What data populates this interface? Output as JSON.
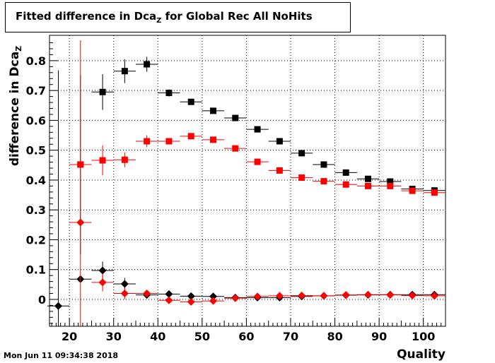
{
  "chart_data": {
    "type": "scatter",
    "title_main": "Fitted difference in Dca",
    "title_sub": "Z",
    "title_tail": " for Global Rec All NoHits",
    "xlabel": "Quality",
    "ylabel_main": "difference in Dca",
    "ylabel_sub": "Z",
    "xlim": [
      15.5,
      105
    ],
    "ylim": [
      -0.09,
      0.885
    ],
    "xticks": [
      20,
      30,
      40,
      50,
      60,
      70,
      80,
      90,
      100
    ],
    "yticks": [
      0,
      0.1,
      0.2,
      0.3,
      0.4,
      0.5,
      0.6,
      0.7,
      0.8
    ],
    "ytick_labels": [
      "0",
      "0.1",
      "0.2",
      "0.3",
      "0.4",
      "0.5",
      "0.6",
      "0.7",
      "0.8"
    ],
    "grid": true,
    "series": [
      {
        "marker": "square",
        "color": "#000000",
        "points": [
          [
            22.5,
            0.452,
            0.3
          ],
          [
            27.5,
            0.695,
            0.06
          ],
          [
            32.5,
            0.765,
            0.04
          ],
          [
            37.5,
            0.788,
            0.025
          ],
          [
            42.5,
            0.692,
            0.012
          ],
          [
            47.5,
            0.662,
            0.008
          ],
          [
            52.5,
            0.632,
            0.006
          ],
          [
            57.5,
            0.608,
            0.005
          ],
          [
            62.5,
            0.57,
            0.005
          ],
          [
            67.5,
            0.53,
            0.005
          ],
          [
            72.5,
            0.49,
            0.004
          ],
          [
            77.5,
            0.452,
            0.004
          ],
          [
            82.5,
            0.425,
            0.004
          ],
          [
            87.5,
            0.404,
            0.004
          ],
          [
            92.5,
            0.395,
            0.004
          ],
          [
            97.5,
            0.37,
            0.004
          ],
          [
            102.5,
            0.365,
            0.004
          ]
        ]
      },
      {
        "marker": "square",
        "color": "#ff0000",
        "points": [
          [
            22.5,
            0.452,
            0.0
          ],
          [
            27.5,
            0.466,
            0.05
          ],
          [
            32.5,
            0.468,
            0.025
          ],
          [
            37.5,
            0.53,
            0.02
          ],
          [
            42.5,
            0.53,
            0.01
          ],
          [
            47.5,
            0.547,
            0.008
          ],
          [
            52.5,
            0.535,
            0.006
          ],
          [
            57.5,
            0.506,
            0.005
          ],
          [
            62.5,
            0.461,
            0.005
          ],
          [
            67.5,
            0.432,
            0.005
          ],
          [
            72.5,
            0.408,
            0.004
          ],
          [
            77.5,
            0.396,
            0.004
          ],
          [
            82.5,
            0.385,
            0.004
          ],
          [
            87.5,
            0.38,
            0.004
          ],
          [
            92.5,
            0.38,
            0.004
          ],
          [
            97.5,
            0.364,
            0.004
          ],
          [
            102.5,
            0.358,
            0.004
          ]
        ]
      },
      {
        "marker": "diamond",
        "color": "#000000",
        "points": [
          [
            17.5,
            -0.022,
            0.79
          ],
          [
            22.5,
            0.068,
            0.0
          ],
          [
            27.5,
            0.097,
            0.03
          ],
          [
            32.5,
            0.052,
            0.02
          ],
          [
            37.5,
            0.015,
            0.01
          ],
          [
            42.5,
            0.018,
            0.008
          ],
          [
            47.5,
            0.011,
            0.006
          ],
          [
            52.5,
            0.01,
            0.005
          ],
          [
            57.5,
            0.006,
            0.005
          ],
          [
            62.5,
            0.006,
            0.005
          ],
          [
            67.5,
            0.006,
            0.005
          ],
          [
            72.5,
            0.01,
            0.004
          ],
          [
            77.5,
            0.012,
            0.004
          ],
          [
            82.5,
            0.014,
            0.004
          ],
          [
            87.5,
            0.015,
            0.004
          ],
          [
            92.5,
            0.016,
            0.004
          ],
          [
            97.5,
            0.016,
            0.004
          ],
          [
            102.5,
            0.016,
            0.004
          ]
        ]
      },
      {
        "marker": "diamond",
        "color": "#ff0000",
        "points": [
          [
            22.5,
            0.258,
            0.61
          ],
          [
            27.5,
            0.057,
            0.03
          ],
          [
            32.5,
            0.02,
            0.02
          ],
          [
            37.5,
            0.02,
            0.01
          ],
          [
            42.5,
            -0.003,
            0.008
          ],
          [
            47.5,
            -0.008,
            0.006
          ],
          [
            52.5,
            -0.005,
            0.005
          ],
          [
            57.5,
            0.004,
            0.005
          ],
          [
            62.5,
            0.01,
            0.005
          ],
          [
            67.5,
            0.012,
            0.004
          ],
          [
            72.5,
            0.013,
            0.004
          ],
          [
            77.5,
            0.012,
            0.004
          ],
          [
            82.5,
            0.015,
            0.004
          ],
          [
            87.5,
            0.016,
            0.004
          ],
          [
            92.5,
            0.015,
            0.004
          ],
          [
            97.5,
            0.013,
            0.004
          ],
          [
            102.5,
            0.012,
            0.004
          ]
        ]
      }
    ],
    "x_half_width": 2.5
  },
  "timestamp": "Mon Jun 11 09:34:38 2018"
}
